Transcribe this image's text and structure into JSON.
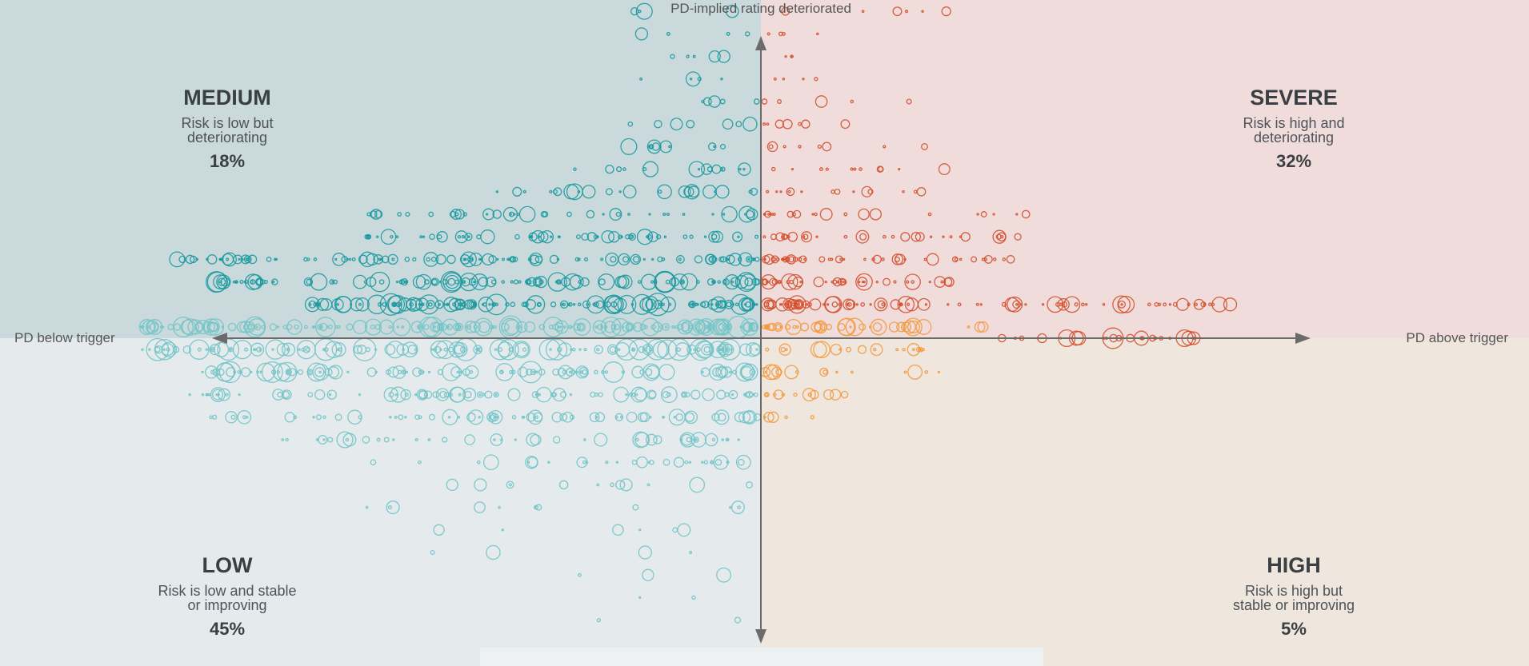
{
  "chart_data": {
    "type": "scatter",
    "title": "",
    "axes": {
      "up_label": "PD-implied rating deteriorated",
      "left_label": "PD below trigger",
      "right_label": "PD above trigger"
    },
    "quadrants": {
      "medium": {
        "name": "MEDIUM",
        "desc1": "Risk is low but",
        "desc2": "deteriorating",
        "pct": "18%",
        "fill": "#cad9db"
      },
      "severe": {
        "name": "SEVERE",
        "desc1": "Risk is high and",
        "desc2": "deteriorating",
        "pct": "32%",
        "fill": "#f0dcdb"
      },
      "low": {
        "name": "LOW",
        "desc1": "Risk is low and stable",
        "desc2": "or improving",
        "pct": "45%",
        "fill": "#e5eaed"
      },
      "high": {
        "name": "HIGH",
        "desc1": "Risk is high but",
        "desc2": "stable or improving",
        "pct": "5%",
        "fill": "#efe6de"
      }
    },
    "colors": {
      "medium": "#1b9aa0",
      "severe": "#d4502e",
      "low": "#72c4c6",
      "high": "#f39a3f",
      "axis": "#6b6b6b"
    },
    "ranges": {
      "x": [
        -1,
        1
      ],
      "y": [
        -1,
        1
      ]
    },
    "grid": false,
    "legend": "none"
  }
}
